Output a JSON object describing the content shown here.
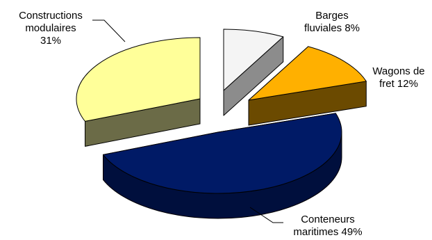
{
  "chart_data": {
    "type": "pie",
    "style": "3d-exploded",
    "title": "",
    "slices": [
      {
        "name": "Construction modulaires",
        "label_lines": [
          "Constructions",
          "modulaires",
          "31%"
        ],
        "value": 31,
        "color": "#FFFF99",
        "side_color": "#6B6B47"
      },
      {
        "name": "Barges fluviales",
        "label_lines": [
          "Barges",
          "fluviales 8%"
        ],
        "value": 8,
        "color": "#F4F4F4",
        "side_color": "#8C8C8C"
      },
      {
        "name": "Wagons de fret",
        "label_lines": [
          "Wagons de",
          "fret 12%"
        ],
        "value": 12,
        "color": "#FFB000",
        "side_color": "#6B4A00"
      },
      {
        "name": "Conteneurs maritimes",
        "label_lines": [
          "Conteneurs",
          "maritimes 49%"
        ],
        "value": 49,
        "color": "#001A66",
        "side_color": "#000F3D"
      }
    ],
    "legend": "none",
    "leader_lines": true
  }
}
